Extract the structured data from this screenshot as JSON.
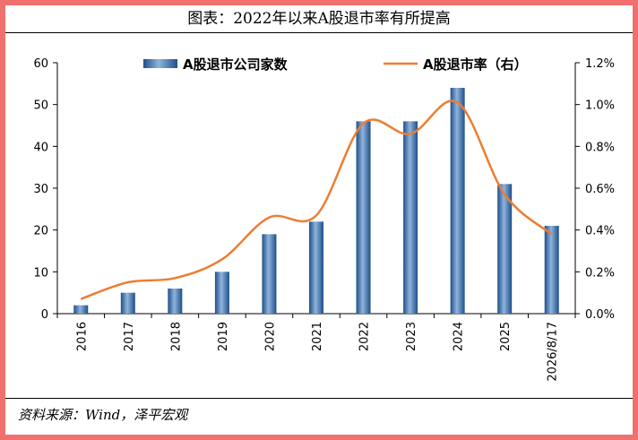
{
  "title": "图表：2022年以来A股退市率有所提高",
  "source": "资料来源：Wind，泽平宏观",
  "chart_data": {
    "type": "bar+line",
    "categories": [
      "2016",
      "2017",
      "2018",
      "2019",
      "2020",
      "2021",
      "2022",
      "2023",
      "2024",
      "2025",
      "2026/8/17"
    ],
    "series": [
      {
        "name": "A股退市公司家数",
        "type": "bar",
        "axis": "left",
        "color": "#2e6aa8",
        "values": [
          2,
          5,
          6,
          10,
          19,
          22,
          46,
          46,
          54,
          31,
          21
        ]
      },
      {
        "name": "A股退市率（右）",
        "type": "line",
        "axis": "right",
        "color": "#ed7d31",
        "values": [
          0.07,
          0.15,
          0.17,
          0.26,
          0.46,
          0.47,
          0.91,
          0.86,
          1.01,
          0.57,
          0.38
        ]
      }
    ],
    "y_left": {
      "min": 0,
      "max": 60,
      "ticks": [
        "0",
        "10",
        "20",
        "30",
        "40",
        "50",
        "60"
      ]
    },
    "y_right": {
      "min": 0,
      "max": 1.2,
      "ticks": [
        "0.0%",
        "0.2%",
        "0.4%",
        "0.6%",
        "0.8%",
        "1.0%",
        "1.2%"
      ]
    },
    "grid": false,
    "legend_position": "top"
  }
}
